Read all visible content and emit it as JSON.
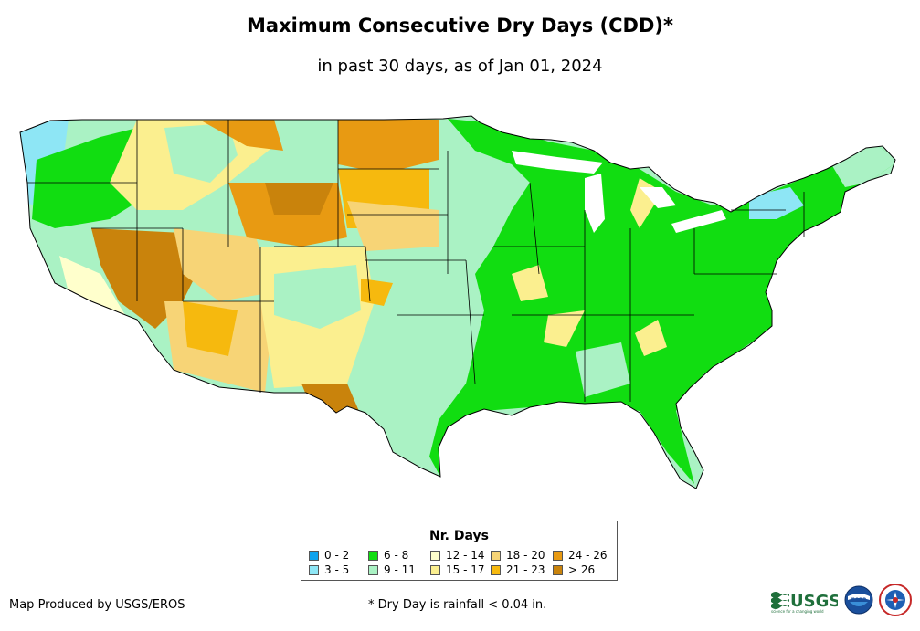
{
  "title": "Maximum Consecutive Dry Days (CDD)*",
  "subtitle": "in past 30 days, as of Jan 01, 2024",
  "legend": {
    "title": "Nr. Days",
    "items": [
      {
        "label": "0 - 2",
        "color": "#0fa3ee"
      },
      {
        "label": "3 - 5",
        "color": "#8ee6f5"
      },
      {
        "label": "6 - 8",
        "color": "#11dd11"
      },
      {
        "label": "9 - 11",
        "color": "#aaf2c4"
      },
      {
        "label": "12 - 14",
        "color": "#ffffcc"
      },
      {
        "label": "15 - 17",
        "color": "#fbef8f"
      },
      {
        "label": "18 - 20",
        "color": "#f7d476"
      },
      {
        "label": "21 - 23",
        "color": "#f6b90e"
      },
      {
        "label": "24 - 26",
        "color": "#e89a12"
      },
      {
        "label": "> 26",
        "color": "#c9830c"
      }
    ]
  },
  "footer": {
    "credit": "Map Produced by USGS/EROS",
    "footnote": "* Dry Day is rainfall < 0.04 in."
  },
  "logos": {
    "usgs": "USGS",
    "usgs_tagline": "science for a changing world",
    "noaa": "noaa"
  }
}
